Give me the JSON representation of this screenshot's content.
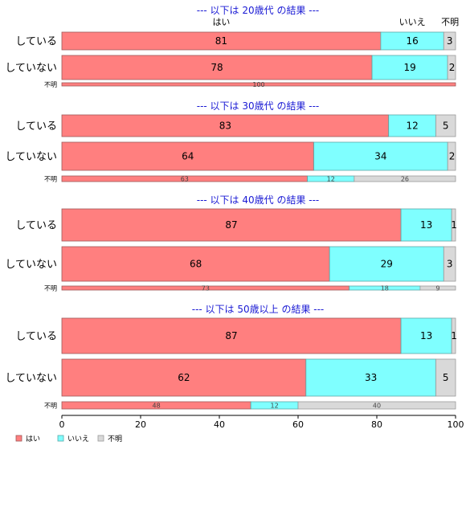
{
  "chart_data": {
    "type": "bar",
    "orientation": "horizontal",
    "stacked": "percent",
    "xlim": [
      0,
      100
    ],
    "x_ticks": [
      "0",
      "20",
      "40",
      "60",
      "80",
      "100"
    ],
    "header_labels": [
      "はい",
      "いいえ",
      "不明"
    ],
    "categories": [
      "はい",
      "いいえ",
      "不明"
    ],
    "colors": {
      "はい": "#ff7f7f",
      "いいえ": "#7fffff",
      "不明": "#d9d9d9"
    },
    "legend": {
      "position": "bottom-left",
      "entries": [
        "はい",
        "いいえ",
        "不明"
      ]
    },
    "panels": [
      {
        "title": "--- 以下は 20歳代 の結果 ---",
        "rows": [
          {
            "label": "している",
            "values": [
              81,
              16,
              3
            ]
          },
          {
            "label": "していない",
            "values": [
              78,
              19,
              2
            ]
          },
          {
            "label": "不明",
            "values": [
              100,
              0,
              0
            ],
            "small": true
          }
        ]
      },
      {
        "title": "--- 以下は 30歳代 の結果 ---",
        "rows": [
          {
            "label": "している",
            "values": [
              83,
              12,
              5
            ]
          },
          {
            "label": "していない",
            "values": [
              64,
              34,
              2
            ]
          },
          {
            "label": "不明",
            "values": [
              63,
              12,
              26
            ],
            "small": true
          }
        ]
      },
      {
        "title": "--- 以下は 40歳代 の結果 ---",
        "rows": [
          {
            "label": "している",
            "values": [
              87,
              13,
              1
            ]
          },
          {
            "label": "していない",
            "values": [
              68,
              29,
              3
            ]
          },
          {
            "label": "不明",
            "values": [
              73,
              18,
              9
            ],
            "small": true
          }
        ]
      },
      {
        "title": "--- 以下は 50歳以上 の結果 ---",
        "rows": [
          {
            "label": "している",
            "values": [
              87,
              13,
              1
            ]
          },
          {
            "label": "していない",
            "values": [
              62,
              33,
              5
            ]
          },
          {
            "label": "不明",
            "values": [
              48,
              12,
              40
            ],
            "small": true
          }
        ]
      }
    ]
  }
}
